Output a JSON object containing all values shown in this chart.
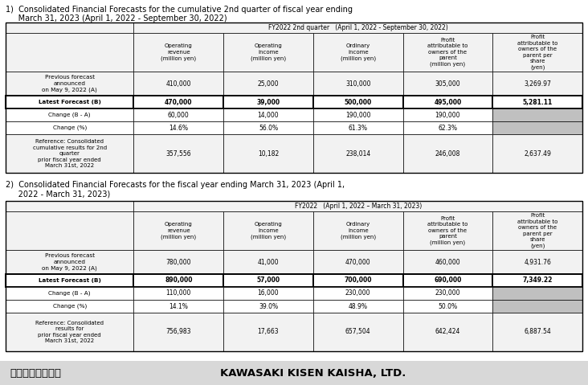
{
  "title1_line1": "1)  Consolidated Financial Forecasts for the cumulative 2nd quarter of fiscal year ending",
  "title1_line2": "     March 31, 2023 (April 1, 2022 - September 30, 2022)",
  "title2_line1": "2)  Consolidated Financial Forecasts for the fiscal year ending March 31, 2023 (April 1,",
  "title2_line2": "     2022 - March 31, 2023)",
  "footer_left": "川崎汽船株式會社",
  "footer_right": "KAWASAKI KISEN KAISHA, LTD.",
  "table1_top_header": "FY2022 2nd quarter   (April 1, 2022 - September 30, 2022)",
  "table2_top_header": "FY2022   (April 1, 2022 – March 31, 2023)",
  "col_headers": [
    "Operating\nrevenue\n(million yen)",
    "Operating\nincome\n(million yen)",
    "Ordinary\nincome\n(million yen)",
    "Profit\nattributable to\nowners of the\nparent\n(million yen)",
    "Profit\nattributable to\nowners of the\nparent per\nshare\n(yen)"
  ],
  "row_labels_t1": [
    "Previous forecast\nannounced\non May 9, 2022 (A)",
    "Latest Forecast (B)",
    "Change (B - A)",
    "Change (%)",
    "Reference: Consolidated\ncumulative results for 2nd\nquarter\nprior fiscal year ended\nMarch 31st, 2022"
  ],
  "row_labels_t2": [
    "Previous forecast\nannounced\non May 9, 2022 (A)",
    "Latest Forecast (B)",
    "Change (B - A)",
    "Change (%)",
    "Reference: Consolidated\nresults for\nprior fiscal year ended\nMarch 31st, 2022"
  ],
  "table1_data": [
    [
      "410,000",
      "25,000",
      "310,000",
      "305,000",
      "3,269.97"
    ],
    [
      "470,000",
      "39,000",
      "500,000",
      "495,000",
      "5,281.11"
    ],
    [
      "60,000",
      "14,000",
      "190,000",
      "190,000",
      ""
    ],
    [
      "14.6%",
      "56.0%",
      "61.3%",
      "62.3%",
      ""
    ],
    [
      "357,556",
      "10,182",
      "238,014",
      "246,008",
      "2,637.49"
    ]
  ],
  "table2_data": [
    [
      "780,000",
      "41,000",
      "470,000",
      "460,000",
      "4,931.76"
    ],
    [
      "890,000",
      "57,000",
      "700,000",
      "690,000",
      "7,349.22"
    ],
    [
      "110,000",
      "16,000",
      "230,000",
      "230,000",
      ""
    ],
    [
      "14.1%",
      "39.0%",
      "48.9%",
      "50.0%",
      ""
    ],
    [
      "756,983",
      "17,663",
      "657,504",
      "642,424",
      "6,887.54"
    ]
  ],
  "bg_white": "#ffffff",
  "bg_light": "#f2f2f2",
  "bg_gray": "#c0c0c0",
  "border_color": "#000000",
  "text_color": "#000000",
  "footer_bg": "#d8d8d8"
}
